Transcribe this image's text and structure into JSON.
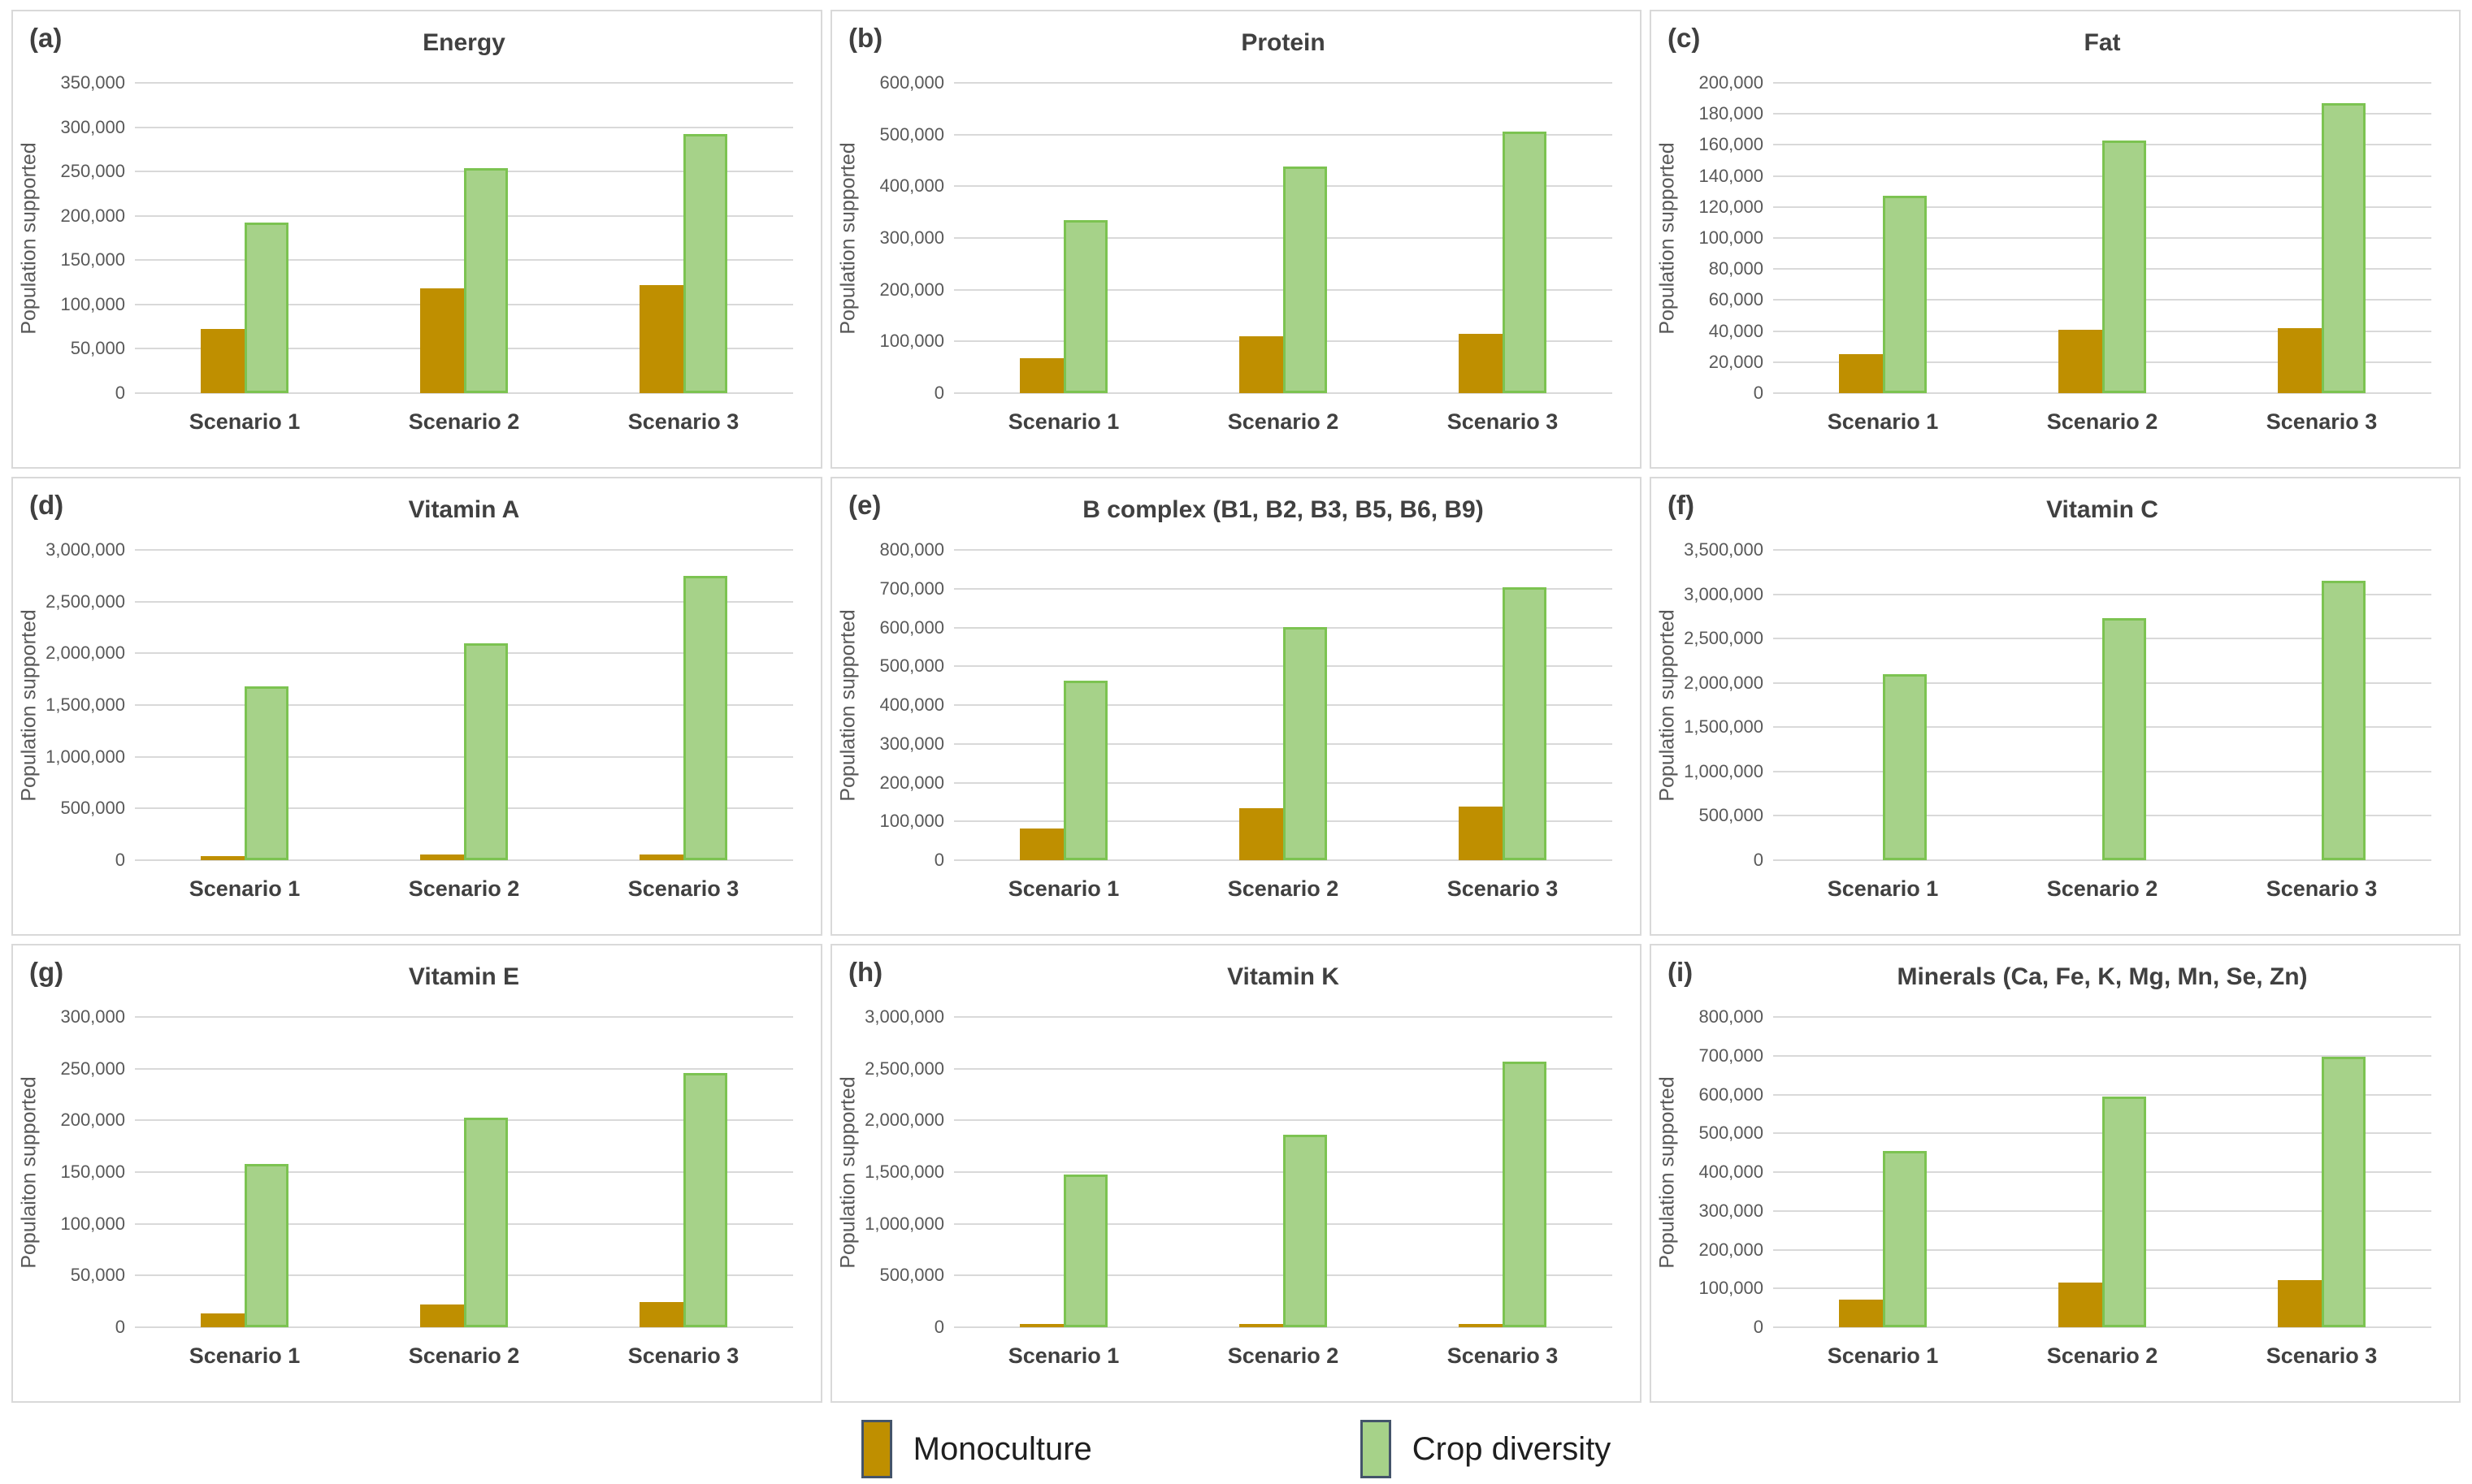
{
  "colors": {
    "monoculture_fill": "#BF8F00",
    "crop_diversity_fill": "#A6D289",
    "crop_diversity_border": "#7CC351",
    "legend_swatch_border": "#44546A",
    "gridline": "#D9D9D9",
    "axis_text": "#595959",
    "title_text": "#404040"
  },
  "legend": {
    "items": [
      {
        "label": "Monoculture",
        "color": "#BF8F00"
      },
      {
        "label": "Crop diversity",
        "color": "#A6D289"
      }
    ]
  },
  "chart_data": [
    {
      "letter": "(a)",
      "title": "Energy",
      "type": "bar",
      "ylabel": "Population supported",
      "categories": [
        "Scenario 1",
        "Scenario 2",
        "Scenario 3"
      ],
      "series": [
        {
          "name": "Monoculture",
          "values": [
            72000,
            118000,
            122000
          ]
        },
        {
          "name": "Crop diversity",
          "values": [
            192000,
            254000,
            292000
          ]
        }
      ],
      "ylim": [
        0,
        350000
      ],
      "ytick_step": 50000,
      "grid": true,
      "legend_position": "below-figure"
    },
    {
      "letter": "(b)",
      "title": "Protein",
      "type": "bar",
      "ylabel": "Population supported",
      "categories": [
        "Scenario 1",
        "Scenario 2",
        "Scenario 3"
      ],
      "series": [
        {
          "name": "Monoculture",
          "values": [
            67000,
            110000,
            114000
          ]
        },
        {
          "name": "Crop diversity",
          "values": [
            335000,
            438000,
            506000
          ]
        }
      ],
      "ylim": [
        0,
        600000
      ],
      "ytick_step": 100000,
      "grid": true,
      "legend_position": "below-figure"
    },
    {
      "letter": "(c)",
      "title": "Fat",
      "type": "bar",
      "ylabel": "Population supported",
      "categories": [
        "Scenario 1",
        "Scenario 2",
        "Scenario 3"
      ],
      "series": [
        {
          "name": "Monoculture",
          "values": [
            25000,
            41000,
            42000
          ]
        },
        {
          "name": "Crop diversity",
          "values": [
            127000,
            163000,
            187000
          ]
        }
      ],
      "ylim": [
        0,
        200000
      ],
      "ytick_step": 20000,
      "grid": true,
      "legend_position": "below-figure"
    },
    {
      "letter": "(d)",
      "title": "Vitamin A",
      "type": "bar",
      "ylabel": "Population supported",
      "categories": [
        "Scenario 1",
        "Scenario 2",
        "Scenario 3"
      ],
      "series": [
        {
          "name": "Monoculture",
          "values": [
            40000,
            55000,
            55000
          ]
        },
        {
          "name": "Crop diversity",
          "values": [
            1680000,
            2100000,
            2750000
          ]
        }
      ],
      "ylim": [
        0,
        3000000
      ],
      "ytick_step": 500000,
      "grid": true,
      "legend_position": "below-figure"
    },
    {
      "letter": "(e)",
      "title": "B complex (B1, B2, B3, B5, B6, B9)",
      "type": "bar",
      "ylabel": "Population supported",
      "categories": [
        "Scenario 1",
        "Scenario 2",
        "Scenario 3"
      ],
      "series": [
        {
          "name": "Monoculture",
          "values": [
            82000,
            135000,
            138000
          ]
        },
        {
          "name": "Crop diversity",
          "values": [
            462000,
            600000,
            703000
          ]
        }
      ],
      "ylim": [
        0,
        800000
      ],
      "ytick_step": 100000,
      "grid": true,
      "legend_position": "below-figure"
    },
    {
      "letter": "(f)",
      "title": "Vitamin C",
      "type": "bar",
      "ylabel": "Population supported",
      "categories": [
        "Scenario 1",
        "Scenario 2",
        "Scenario 3"
      ],
      "series": [
        {
          "name": "Monoculture",
          "values": [
            0,
            0,
            0
          ]
        },
        {
          "name": "Crop diversity",
          "values": [
            2100000,
            2730000,
            3150000
          ]
        }
      ],
      "ylim": [
        0,
        3500000
      ],
      "ytick_step": 500000,
      "grid": true,
      "legend_position": "below-figure"
    },
    {
      "letter": "(g)",
      "title": "Vitamin E",
      "type": "bar",
      "ylabel": "Populaiton supported",
      "categories": [
        "Scenario 1",
        "Scenario 2",
        "Scenario 3"
      ],
      "series": [
        {
          "name": "Monoculture",
          "values": [
            13000,
            22000,
            24000
          ]
        },
        {
          "name": "Crop diversity",
          "values": [
            158000,
            203000,
            246000
          ]
        }
      ],
      "ylim": [
        0,
        300000
      ],
      "ytick_step": 50000,
      "grid": true,
      "legend_position": "below-figure"
    },
    {
      "letter": "(h)",
      "title": "Vitamin K",
      "type": "bar",
      "ylabel": "Population supported",
      "categories": [
        "Scenario 1",
        "Scenario 2",
        "Scenario 3"
      ],
      "series": [
        {
          "name": "Monoculture",
          "values": [
            30000,
            30000,
            35000
          ]
        },
        {
          "name": "Crop diversity",
          "values": [
            1480000,
            1860000,
            2570000
          ]
        }
      ],
      "ylim": [
        0,
        3000000
      ],
      "ytick_step": 500000,
      "grid": true,
      "legend_position": "below-figure"
    },
    {
      "letter": "(i)",
      "title": "Minerals (Ca, Fe, K, Mg, Mn, Se, Zn)",
      "type": "bar",
      "ylabel": "Population supported",
      "categories": [
        "Scenario 1",
        "Scenario 2",
        "Scenario 3"
      ],
      "series": [
        {
          "name": "Monoculture",
          "values": [
            72000,
            115000,
            122000
          ]
        },
        {
          "name": "Crop diversity",
          "values": [
            455000,
            595000,
            697000
          ]
        }
      ],
      "ylim": [
        0,
        800000
      ],
      "ytick_step": 100000,
      "grid": true,
      "legend_position": "below-figure"
    }
  ]
}
